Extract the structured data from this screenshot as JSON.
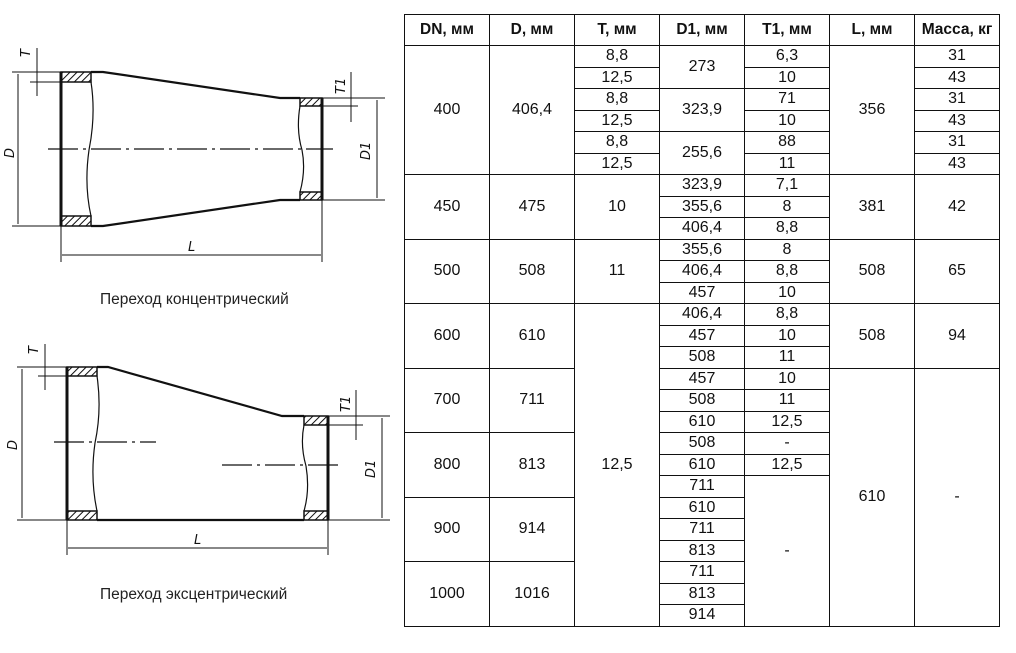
{
  "diagrams": {
    "concentric_caption": "Переход концентрический",
    "eccentric_caption": "Переход эксцентрический",
    "labels": {
      "T": "T",
      "T1": "T1",
      "D": "D",
      "D1": "D1",
      "L": "L"
    }
  },
  "table": {
    "headers": [
      "DN, мм",
      "D, мм",
      "T, мм",
      "D1, мм",
      "T1, мм",
      "L, мм",
      "Масса, кг"
    ],
    "rows": [
      [
        {
          "v": "400",
          "rs": 6
        },
        {
          "v": "406,4",
          "rs": 6
        },
        {
          "v": "8,8"
        },
        {
          "v": "273",
          "rs": 2
        },
        {
          "v": "6,3"
        },
        {
          "v": "356",
          "rs": 6
        },
        {
          "v": "31"
        }
      ],
      [
        {
          "v": "12,5"
        },
        {
          "v": "10"
        },
        {
          "v": "43"
        }
      ],
      [
        {
          "v": "8,8"
        },
        {
          "v": "323,9",
          "rs": 2
        },
        {
          "v": "71"
        },
        {
          "v": "31"
        }
      ],
      [
        {
          "v": "12,5"
        },
        {
          "v": "10"
        },
        {
          "v": "43"
        }
      ],
      [
        {
          "v": "8,8"
        },
        {
          "v": "255,6",
          "rs": 2
        },
        {
          "v": "88"
        },
        {
          "v": "31"
        }
      ],
      [
        {
          "v": "12,5"
        },
        {
          "v": "11"
        },
        {
          "v": "43"
        }
      ],
      [
        {
          "v": "450",
          "rs": 3
        },
        {
          "v": "475",
          "rs": 3
        },
        {
          "v": "10",
          "rs": 3
        },
        {
          "v": "323,9"
        },
        {
          "v": "7,1"
        },
        {
          "v": "381",
          "rs": 3
        },
        {
          "v": "42",
          "rs": 3
        }
      ],
      [
        {
          "v": "355,6"
        },
        {
          "v": "8"
        }
      ],
      [
        {
          "v": "406,4"
        },
        {
          "v": "8,8"
        }
      ],
      [
        {
          "v": "500",
          "rs": 3
        },
        {
          "v": "508",
          "rs": 3
        },
        {
          "v": "11",
          "rs": 3
        },
        {
          "v": "355,6"
        },
        {
          "v": "8"
        },
        {
          "v": "508",
          "rs": 3
        },
        {
          "v": "65",
          "rs": 3
        }
      ],
      [
        {
          "v": "406,4"
        },
        {
          "v": "8,8"
        }
      ],
      [
        {
          "v": "457"
        },
        {
          "v": "10"
        }
      ],
      [
        {
          "v": "600",
          "rs": 3
        },
        {
          "v": "610",
          "rs": 3
        },
        {
          "v": "12,5",
          "rs": 15
        },
        {
          "v": "406,4"
        },
        {
          "v": "8,8"
        },
        {
          "v": "508",
          "rs": 3
        },
        {
          "v": "94",
          "rs": 3
        }
      ],
      [
        {
          "v": "457"
        },
        {
          "v": "10"
        }
      ],
      [
        {
          "v": "508"
        },
        {
          "v": "11"
        }
      ],
      [
        {
          "v": "700",
          "rs": 3
        },
        {
          "v": "711",
          "rs": 3
        },
        {
          "v": "457"
        },
        {
          "v": "10"
        },
        {
          "v": "610",
          "rs": 12
        },
        {
          "v": "-",
          "rs": 12
        }
      ],
      [
        {
          "v": "508"
        },
        {
          "v": "11"
        }
      ],
      [
        {
          "v": "610"
        },
        {
          "v": "12,5"
        }
      ],
      [
        {
          "v": "800",
          "rs": 3
        },
        {
          "v": "813",
          "rs": 3
        },
        {
          "v": "508"
        },
        {
          "v": "-"
        }
      ],
      [
        {
          "v": "610"
        },
        {
          "v": "12,5"
        }
      ],
      [
        {
          "v": "711"
        },
        {
          "v": "-",
          "rs": 7
        }
      ],
      [
        {
          "v": "900",
          "rs": 3
        },
        {
          "v": "914",
          "rs": 3
        },
        {
          "v": "610"
        }
      ],
      [
        {
          "v": "711"
        }
      ],
      [
        {
          "v": "813"
        }
      ],
      [
        {
          "v": "1000",
          "rs": 3
        },
        {
          "v": "1016",
          "rs": 3
        },
        {
          "v": "711"
        }
      ],
      [
        {
          "v": "813"
        }
      ],
      [
        {
          "v": "914"
        }
      ]
    ]
  }
}
